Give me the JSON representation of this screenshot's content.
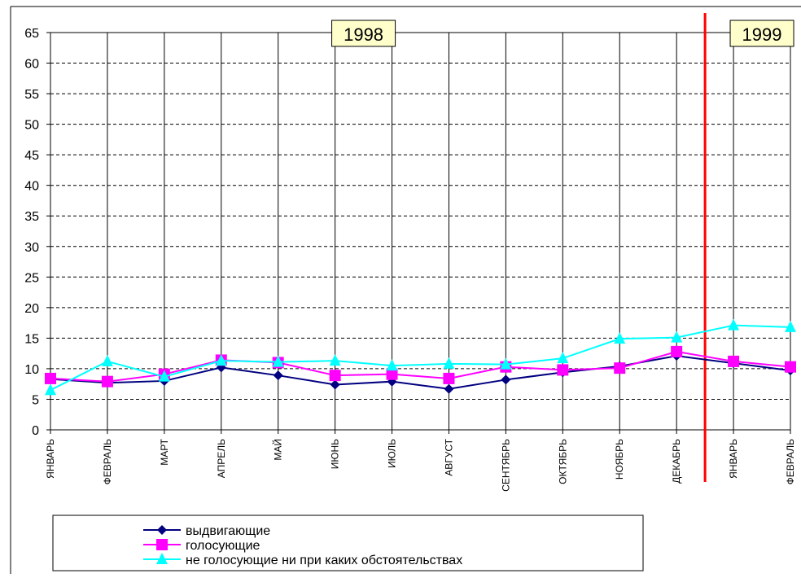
{
  "chart_data": {
    "type": "line",
    "title": "",
    "xlabel": "",
    "ylabel": "",
    "ylim": [
      0,
      65
    ],
    "yticks": [
      0,
      5,
      10,
      15,
      20,
      25,
      30,
      35,
      40,
      45,
      50,
      55,
      60,
      65
    ],
    "grid": true,
    "categories": [
      "ЯНВАРЬ",
      "ФЕВРАЛЬ",
      "МАРТ",
      "АПРЕЛЬ",
      "МАЙ",
      "ИЮНЬ",
      "ИЮЛЬ",
      "АВГУСТ",
      "СЕНТЯБРЬ",
      "ОКТЯБРЬ",
      "НОЯБРЬ",
      "ДЕКАБРЬ",
      "ЯНВАРЬ",
      "ФЕВРАЛЬ"
    ],
    "year_labels": [
      {
        "text": "1998",
        "category_index": 5.5
      },
      {
        "text": "1999",
        "category_index": 12.5
      }
    ],
    "year_divider_after_index": 11,
    "legend_position": "bottom",
    "series": [
      {
        "name": "выдвигающие",
        "color": "#000080",
        "marker": "diamond",
        "values": [
          8.3,
          7.7,
          8.0,
          10.2,
          8.9,
          7.4,
          7.9,
          6.7,
          8.2,
          9.4,
          10.4,
          12.1,
          10.9,
          9.7
        ]
      },
      {
        "name": "голосующие",
        "color": "#ff00ff",
        "marker": "square",
        "values": [
          8.4,
          7.9,
          9.1,
          11.4,
          11.0,
          8.9,
          9.1,
          8.4,
          10.3,
          9.8,
          10.1,
          12.8,
          11.2,
          10.3
        ]
      },
      {
        "name": "не голосующие ни при каких обстоятельствах",
        "color": "#00ffff",
        "marker": "triangle",
        "values": [
          6.5,
          11.2,
          8.7,
          11.3,
          11.1,
          11.3,
          10.5,
          10.8,
          10.7,
          11.7,
          14.9,
          15.1,
          17.1,
          16.8
        ]
      }
    ],
    "colors": {
      "divider": "#ff0000",
      "year_box": "#ffffcc",
      "grid": "#000000"
    }
  }
}
